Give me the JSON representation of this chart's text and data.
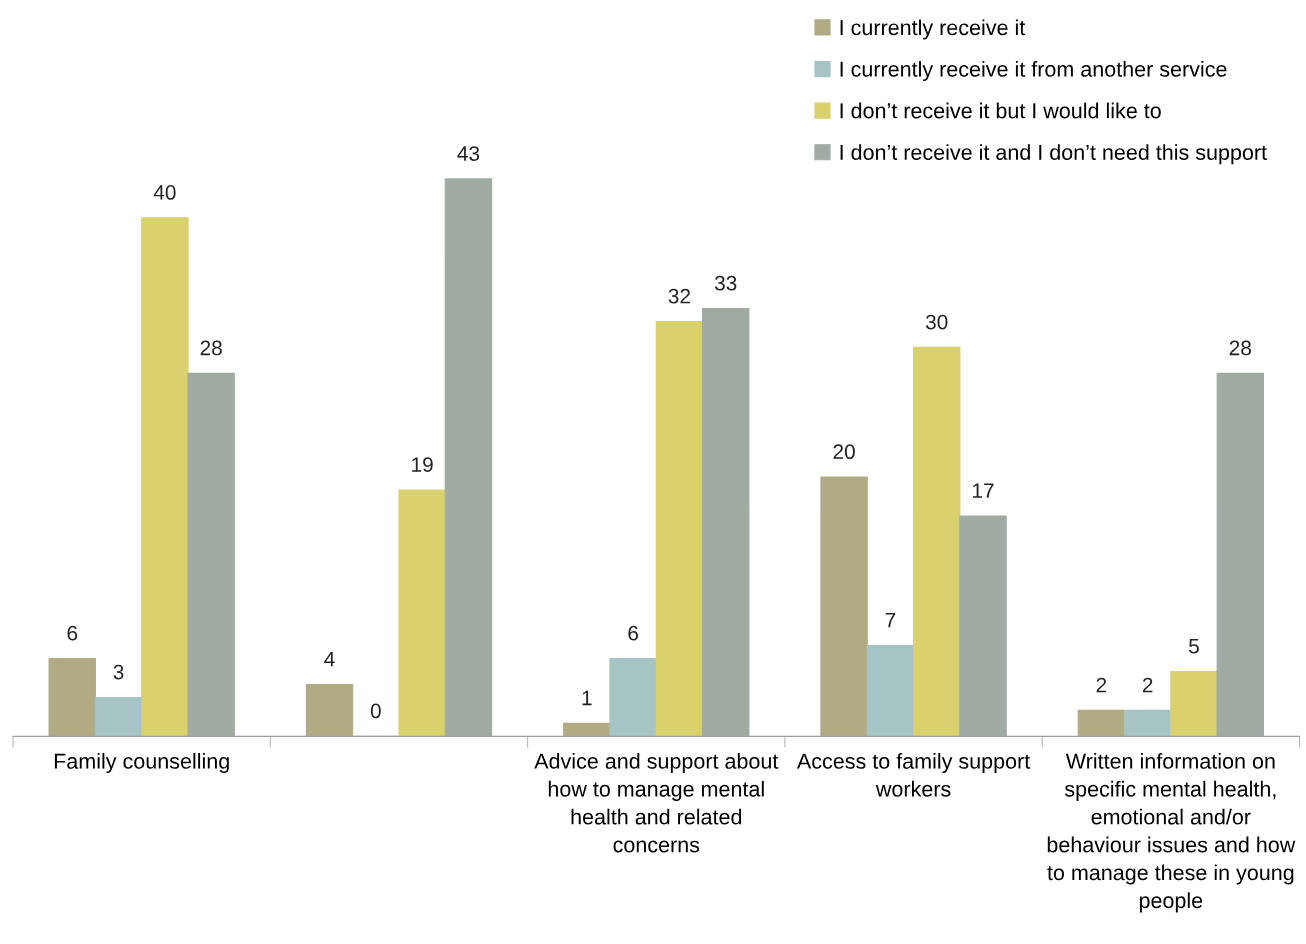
{
  "chart_data": {
    "type": "bar",
    "categories": [
      "Family counselling",
      null,
      "Advice and support about how to manage mental health and related concerns",
      "Access to family support workers",
      "Written information on specific mental health, emotional and/or behaviour issues and how to manage these in young people"
    ],
    "series": [
      {
        "name": "I currently receive it",
        "color": "#b0ab85",
        "values": [
          6,
          4,
          1,
          20,
          2
        ]
      },
      {
        "name": "I currently receive it from another service",
        "color": "#a6c4c4",
        "values": [
          3,
          0,
          6,
          7,
          2
        ]
      },
      {
        "name": "I don’t receive it but I would like to",
        "color": "#d9d06e",
        "values": [
          40,
          19,
          32,
          30,
          5
        ]
      },
      {
        "name": "I don’t receive it and I don’t need this support",
        "color": "#a0aba4",
        "values": [
          28,
          43,
          33,
          17,
          28
        ]
      }
    ],
    "data_labels": true,
    "legend": "top right",
    "grid": false
  }
}
